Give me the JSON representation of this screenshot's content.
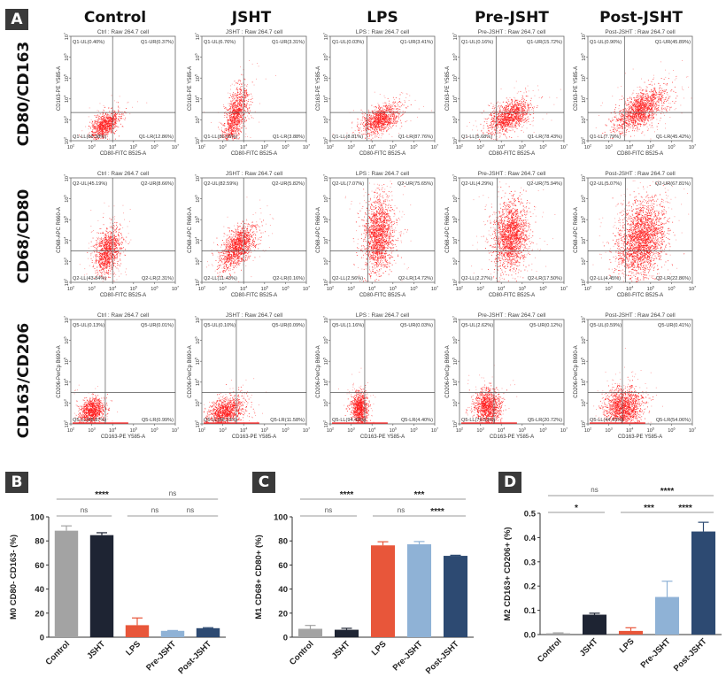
{
  "panel_labels": {
    "A": "A",
    "B": "B",
    "C": "C",
    "D": "D"
  },
  "columns": [
    "Control",
    "JSHT",
    "LPS",
    "Pre-JSHT",
    "Post-JSHT"
  ],
  "rows": [
    "CD80/CD163",
    "CD68/CD80",
    "CD163/CD206"
  ],
  "colors": {
    "dots": "#ff1a1a",
    "control": "#a3a3a3",
    "jsht": "#1e2433",
    "lps": "#e8563a",
    "pre_jsht": "#8fb2d6",
    "post_jsht": "#2d4a72",
    "sig_line": "#9a9a9a"
  },
  "chart_data": [
    {
      "type": "scatter",
      "subtype": "flow-cytometry-quadrant-grid",
      "panel": "A",
      "x_ticks": [
        "10^2",
        "10^3",
        "10^4",
        "10^5",
        "10^6",
        "10^7"
      ],
      "y_ticks": [
        "10^2",
        "10^3",
        "10^4",
        "10^5",
        "10^6",
        "10^7"
      ],
      "rows": [
        {
          "name": "CD80/CD163",
          "xlabel": "CD80-FITC B525-A",
          "ylabel": "CD163-PE Y585-A",
          "plots": [
            {
              "title": "Ctrl : Raw 264.7 cell",
              "UL": "Q1-UL(0.40%)",
              "UR": "Q1-UR(0.37%)",
              "LL": "Q1-LL(86.38%)",
              "LR": "Q1-LR(12.86%)"
            },
            {
              "title": "JSHT : Raw 264.7 cell",
              "UL": "Q1-UL(6.76%)",
              "UR": "Q1-UR(3.31%)",
              "LL": "Q1-LL(86.06%)",
              "LR": "Q1-LR(3.88%)"
            },
            {
              "title": "LPS : Raw 264.7 cell",
              "UL": "Q1-UL(0.03%)",
              "UR": "Q1-UR(3.41%)",
              "LL": "Q1-LL(8.81%)",
              "LR": "Q1-LR(87.76%)"
            },
            {
              "title": "Pre-JSHT : Raw 264.7 cell",
              "UL": "Q1-UL(0.16%)",
              "UR": "Q1-UR(15.72%)",
              "LL": "Q1-LL(5.68%)",
              "LR": "Q1-LR(78.43%)"
            },
            {
              "title": "Post-JSHT : Raw 264.7 cell",
              "UL": "Q1-UL(0.90%)",
              "UR": "Q1-UR(45.89%)",
              "LL": "Q1-LL(7.79%)",
              "LR": "Q1-LR(45.42%)"
            }
          ]
        },
        {
          "name": "CD68/CD80",
          "xlabel": "CD80-FITC B525-A",
          "ylabel": "CD68-APC R660-A",
          "plots": [
            {
              "title": "Ctrl : Raw 264.7 cell",
              "UL": "Q2-UL(45.19%)",
              "UR": "Q2-UR(8.66%)",
              "LL": "Q2-LL(43.84%)",
              "LR": "Q2-LR(2.31%)"
            },
            {
              "title": "JSHT : Raw 264.7 cell",
              "UL": "Q2-UL(82.59%)",
              "UR": "Q2-UR(5.82%)",
              "LL": "Q2-LL(11.43%)",
              "LR": "Q2-LR(0.16%)"
            },
            {
              "title": "LPS : Raw 264.7 cell",
              "UL": "Q2-UL(7.07%)",
              "UR": "Q2-UR(75.65%)",
              "LL": "Q2-LL(2.56%)",
              "LR": "Q2-LR(14.72%)"
            },
            {
              "title": "Pre-JSHT : Raw 264.7 cell",
              "UL": "Q2-UL(4.29%)",
              "UR": "Q2-UR(75.94%)",
              "LL": "Q2-LL(2.27%)",
              "LR": "Q2-LR(17.50%)"
            },
            {
              "title": "Post-JSHT : Raw 264.7 cell",
              "UL": "Q2-UL(5.07%)",
              "UR": "Q2-UR(67.81%)",
              "LL": "Q2-LL(4.45%)",
              "LR": "Q2-LR(22.86%)"
            }
          ]
        },
        {
          "name": "CD163/CD206",
          "xlabel": "CD163-PE Y585-A",
          "ylabel": "CD206-PerCp B690-A",
          "plots": [
            {
              "title": "Ctrl : Raw 264.7 cell",
              "UL": "Q5-UL(0.13%)",
              "UR": "Q5-UR(0.01%)",
              "LL": "Q5-LL(98.87%)",
              "LR": "Q5-LR(0.99%)"
            },
            {
              "title": "JSHT : Raw 264.7 cell",
              "UL": "Q5-UL(0.10%)",
              "UR": "Q5-UR(0.09%)",
              "LL": "Q5-LL(88.23%)",
              "LR": "Q5-LR(11.58%)"
            },
            {
              "title": "LPS : Raw 264.7 cell",
              "UL": "Q5-UL(1.16%)",
              "UR": "Q5-UR(0.03%)",
              "LL": "Q5-LL(94.42%)",
              "LR": "Q5-LR(4.40%)"
            },
            {
              "title": "Pre-JSHT : Raw 264.7 cell",
              "UL": "Q5-UL(2.62%)",
              "UR": "Q5-UR(0.12%)",
              "LL": "Q5-LL(76.53%)",
              "LR": "Q5-LR(20.72%)"
            },
            {
              "title": "Post-JSHT : Raw 264.7 cell",
              "UL": "Q5-UL(0.59%)",
              "UR": "Q5-UR(0.41%)",
              "LL": "Q5-LL(44.93%)",
              "LR": "Q5-LR(54.06%)"
            }
          ]
        }
      ]
    },
    {
      "type": "bar",
      "panel": "B",
      "title": "",
      "xlabel": "",
      "ylabel": "M0 CD80- CD163- (%)",
      "categories": [
        "Control",
        "JSHT",
        "LPS",
        "Pre-JSHT",
        "Post-JSHT"
      ],
      "values": [
        88.5,
        84.8,
        10.0,
        5.3,
        7.5
      ],
      "errors": [
        4.0,
        2.0,
        6.0,
        0.3,
        0.4
      ],
      "ylim": [
        0,
        100
      ],
      "yticks": [
        "0",
        "20",
        "40",
        "60",
        "80",
        "100"
      ],
      "ytick_values": [
        0,
        20,
        40,
        60,
        80,
        100
      ],
      "significance": [
        {
          "from": 0,
          "to": 1,
          "label": "ns",
          "level": 1
        },
        {
          "from": 0,
          "to": 2,
          "label": "****",
          "level": 2
        },
        {
          "from": 2,
          "to": 3,
          "label": "ns",
          "level": 1
        },
        {
          "from": 3,
          "to": 4,
          "label": "ns",
          "level": 1
        },
        {
          "from": 2,
          "to": 4,
          "label": "ns",
          "level": 2
        }
      ]
    },
    {
      "type": "bar",
      "panel": "C",
      "title": "",
      "xlabel": "",
      "ylabel": "M1 CD68+ CD80+ (%)",
      "categories": [
        "Control",
        "JSHT",
        "LPS",
        "Pre-JSHT",
        "Post-JSHT"
      ],
      "values": [
        7.0,
        6.2,
        76.3,
        77.2,
        67.6
      ],
      "errors": [
        2.8,
        1.2,
        3.0,
        2.3,
        0.5
      ],
      "ylim": [
        0,
        100
      ],
      "yticks": [
        "0",
        "20",
        "40",
        "60",
        "80",
        "100"
      ],
      "ytick_values": [
        0,
        20,
        40,
        60,
        80,
        100
      ],
      "significance": [
        {
          "from": 0,
          "to": 1,
          "label": "ns",
          "level": 1
        },
        {
          "from": 0,
          "to": 2,
          "label": "****",
          "level": 2
        },
        {
          "from": 2,
          "to": 3,
          "label": "ns",
          "level": 1
        },
        {
          "from": 3,
          "to": 4,
          "label": "****",
          "level": 1
        },
        {
          "from": 2,
          "to": 4,
          "label": "***",
          "level": 2
        }
      ]
    },
    {
      "type": "bar",
      "panel": "D",
      "title": "",
      "xlabel": "",
      "ylabel": "M2 CD163+ CD206+ (%)",
      "categories": [
        "Control",
        "JSHT",
        "LPS",
        "Pre-JSHT",
        "Post-JSHT"
      ],
      "values": [
        0.005,
        0.082,
        0.015,
        0.155,
        0.425
      ],
      "errors": [
        0.002,
        0.006,
        0.013,
        0.065,
        0.038
      ],
      "ylim": [
        0,
        0.5
      ],
      "yticks": [
        "0.0",
        "0.1",
        "0.2",
        "0.3",
        "0.4",
        "0.5"
      ],
      "ytick_values": [
        0,
        0.1,
        0.2,
        0.3,
        0.4,
        0.5
      ],
      "significance": [
        {
          "from": 0,
          "to": 1,
          "label": "*",
          "level": 1
        },
        {
          "from": 0,
          "to": 2,
          "label": "ns",
          "level": 2
        },
        {
          "from": 2,
          "to": 3,
          "label": "***",
          "level": 1
        },
        {
          "from": 3,
          "to": 4,
          "label": "****",
          "level": 1
        },
        {
          "from": 2,
          "to": 4,
          "label": "****",
          "level": 2
        }
      ]
    }
  ]
}
